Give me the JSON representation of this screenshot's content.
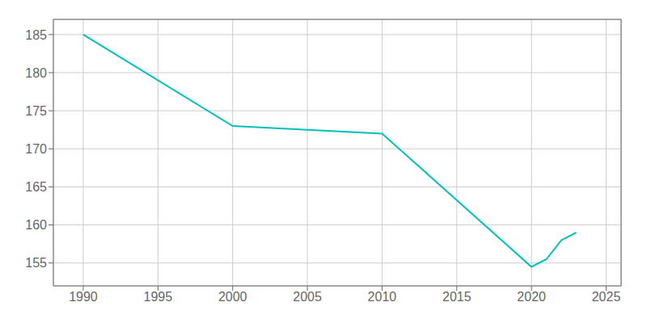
{
  "chart_data": {
    "type": "line",
    "x": [
      1990,
      2000,
      2005,
      2010,
      2020,
      2021,
      2022,
      2023
    ],
    "values": [
      185,
      173,
      172.5,
      172,
      154.5,
      155.5,
      158,
      159
    ],
    "color": "#00BFBF",
    "xlim": [
      1988,
      2026
    ],
    "ylim": [
      152,
      187
    ],
    "xticks": [
      1990,
      1995,
      2000,
      2005,
      2010,
      2015,
      2020,
      2025
    ],
    "yticks": [
      155,
      160,
      165,
      170,
      175,
      180,
      185
    ],
    "grid": true
  }
}
